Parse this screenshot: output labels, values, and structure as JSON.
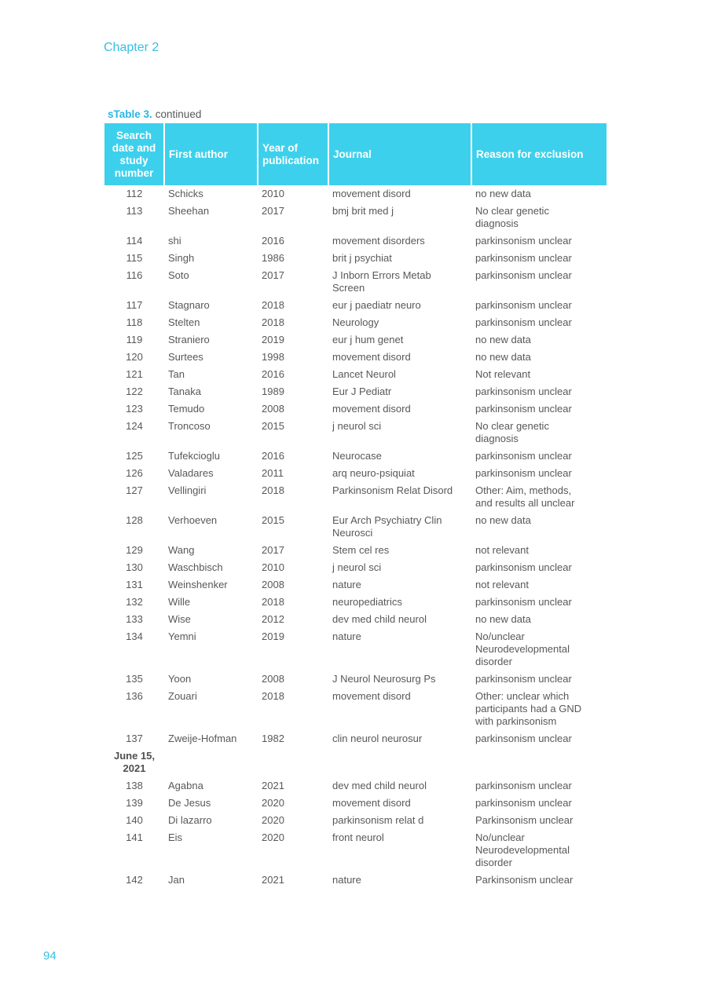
{
  "page": {
    "chapter_heading": "Chapter 2",
    "page_number": "94"
  },
  "colors": {
    "accent": "#3dd0ec",
    "accent_text": "#38bfe4",
    "caption_accent": "#29b7e2",
    "body_text": "#58585a",
    "section_bold_text": "#4f4f51",
    "header_text": "#ffffff"
  },
  "table": {
    "caption_bold": "sTable 3.",
    "caption_rest": "continued",
    "headers": [
      "Search\ndate and\nstudy\nnumber",
      "First author",
      "Year of\npublication",
      "Journal",
      "Reason for exclusion"
    ],
    "rows": [
      {
        "type": "entry",
        "num": "112",
        "author": "Schicks",
        "year": "2010",
        "journal": "movement disord",
        "reason": "no new data"
      },
      {
        "type": "entry",
        "num": "113",
        "author": "Sheehan",
        "year": "2017",
        "journal": "bmj brit med j",
        "reason": "No clear genetic\ndiagnosis"
      },
      {
        "type": "entry",
        "num": "114",
        "author": "shi",
        "year": "2016",
        "journal": "movement disorders",
        "reason": "parkinsonism unclear"
      },
      {
        "type": "entry",
        "num": "115",
        "author": "Singh",
        "year": "1986",
        "journal": "brit j psychiat",
        "reason": "parkinsonism unclear"
      },
      {
        "type": "entry",
        "num": "116",
        "author": "Soto",
        "year": "2017",
        "journal": "J Inborn Errors Metab\nScreen",
        "reason": "parkinsonism unclear"
      },
      {
        "type": "entry",
        "num": "117",
        "author": "Stagnaro",
        "year": "2018",
        "journal": "eur j paediatr neuro",
        "reason": "parkinsonism unclear"
      },
      {
        "type": "entry",
        "num": "118",
        "author": "Stelten",
        "year": "2018",
        "journal": "Neurology",
        "reason": "parkinsonism unclear"
      },
      {
        "type": "entry",
        "num": "119",
        "author": "Straniero",
        "year": "2019",
        "journal": "eur j hum genet",
        "reason": "no new data"
      },
      {
        "type": "entry",
        "num": "120",
        "author": "Surtees",
        "year": "1998",
        "journal": "movement disord",
        "reason": "no new data"
      },
      {
        "type": "entry",
        "num": "121",
        "author": "Tan",
        "year": "2016",
        "journal": "Lancet Neurol",
        "reason": "Not relevant"
      },
      {
        "type": "entry",
        "num": "122",
        "author": "Tanaka",
        "year": "1989",
        "journal": "Eur J Pediatr",
        "reason": "parkinsonism unclear"
      },
      {
        "type": "entry",
        "num": "123",
        "author": "Temudo",
        "year": "2008",
        "journal": "movement disord",
        "reason": "parkinsonism unclear"
      },
      {
        "type": "entry",
        "num": "124",
        "author": "Troncoso",
        "year": "2015",
        "journal": "j neurol sci",
        "reason": "No clear genetic\ndiagnosis"
      },
      {
        "type": "entry",
        "num": "125",
        "author": "Tufekcioglu",
        "year": "2016",
        "journal": "Neurocase",
        "reason": "parkinsonism unclear"
      },
      {
        "type": "entry",
        "num": "126",
        "author": "Valadares",
        "year": "2011",
        "journal": "arq neuro-psiquiat",
        "reason": "parkinsonism unclear"
      },
      {
        "type": "entry",
        "num": "127",
        "author": "Vellingiri",
        "year": "2018",
        "journal": "Parkinsonism Relat Disord",
        "reason": "Other: Aim, methods,\nand results all unclear"
      },
      {
        "type": "entry",
        "num": "128",
        "author": "Verhoeven",
        "year": "2015",
        "journal": "Eur Arch Psychiatry Clin\nNeurosci",
        "reason": "no new data"
      },
      {
        "type": "entry",
        "num": "129",
        "author": "Wang",
        "year": "2017",
        "journal": "Stem cel res",
        "reason": "not relevant"
      },
      {
        "type": "entry",
        "num": "130",
        "author": "Waschbisch",
        "year": "2010",
        "journal": "j neurol sci",
        "reason": "parkinsonism unclear"
      },
      {
        "type": "entry",
        "num": "131",
        "author": "Weinshenker",
        "year": "2008",
        "journal": "nature",
        "reason": "not relevant"
      },
      {
        "type": "entry",
        "num": "132",
        "author": "Wille",
        "year": "2018",
        "journal": "neuropediatrics",
        "reason": "parkinsonism unclear"
      },
      {
        "type": "entry",
        "num": "133",
        "author": "Wise",
        "year": "2012",
        "journal": "dev med child neurol",
        "reason": "no new data"
      },
      {
        "type": "entry",
        "num": "134",
        "author": "Yemni",
        "year": "2019",
        "journal": "nature",
        "reason": "No/unclear\nNeurodevelopmental\ndisorder"
      },
      {
        "type": "entry",
        "num": "135",
        "author": "Yoon",
        "year": "2008",
        "journal": "J Neurol Neurosurg Ps",
        "reason": "parkinsonism unclear"
      },
      {
        "type": "entry",
        "num": "136",
        "author": "Zouari",
        "year": "2018",
        "journal": "movement disord",
        "reason": "Other: unclear which\nparticipants had a GND\nwith parkinsonism"
      },
      {
        "type": "entry",
        "num": "137",
        "author": "Zweije-Hofman",
        "year": "1982",
        "journal": "clin neurol neurosur",
        "reason": "parkinsonism unclear"
      },
      {
        "type": "section",
        "label": "June 15,\n2021"
      },
      {
        "type": "entry",
        "num": "138",
        "author": "Agabna",
        "year": "2021",
        "journal": "dev med child neurol",
        "reason": "parkinsonism unclear"
      },
      {
        "type": "entry",
        "num": "139",
        "author": "De Jesus",
        "year": "2020",
        "journal": "movement disord",
        "reason": "parkinsonism unclear"
      },
      {
        "type": "entry",
        "num": "140",
        "author": "Di lazarro",
        "year": "2020",
        "journal": "parkinsonism relat d",
        "reason": "Parkinsonism unclear"
      },
      {
        "type": "entry",
        "num": "141",
        "author": "Eis",
        "year": "2020",
        "journal": "front neurol",
        "reason": "No/unclear\nNeurodevelopmental\ndisorder"
      },
      {
        "type": "entry",
        "num": "142",
        "author": "Jan",
        "year": "2021",
        "journal": "nature",
        "reason": "Parkinsonism unclear"
      }
    ]
  }
}
